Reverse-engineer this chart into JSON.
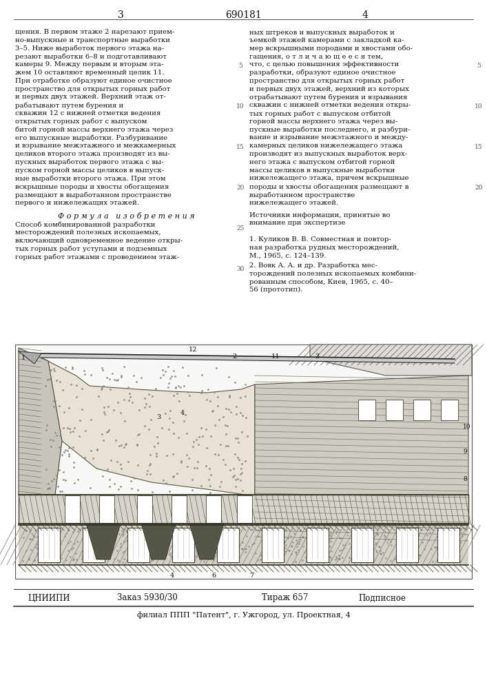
{
  "patent_number": "690181",
  "page_left": "3",
  "page_right": "4",
  "col_left_text": [
    "щения. В первом этаже 2 нарезают прием-",
    "но-выпускные и транспортные выработки",
    "3–5. Ниже выработок первого этажа на-",
    "резают выработки 6–8 и подготавливают",
    "камеры 9. Между первым и вторым эта-",
    "жем 10 оставляют временный целик 11.",
    "При отработке образуют единое очистное",
    "пространство для открытых горных работ",
    "и первых двух этажей. Верхний этаж от-",
    "рабатывают путем бурения и",
    "скважин 12 с нижней отметки ведения",
    "открытых горных работ с выпуском",
    "битой горной массы верхнего этажа через",
    "его выпускные выработки. Разбуривание",
    "и взрывание межэтажного и межкамерных",
    "целиков второго этажа производят из вы-",
    "пускных выработок первого этажа с вы-",
    "пуском горной массы целиков в выпуск-",
    "ные выработки второго этажа. При этом",
    "вскрышные породы и хвосты обогащения",
    "размещают в выработанном пространстве",
    "первого и нижележащих этажей."
  ],
  "col_right_text": [
    "ных штреков и выпускных выработок и",
    "ъемкой этажей камерами с закладкой ка-",
    "мер вскрышными породами и хвостами обо-",
    "гащения, о т л и ч а ю щ е е с я тем,",
    "что, с целью повышения эффективности",
    "разработки, образуют единое очистное",
    "пространство для открытых горных работ",
    "и первых двух этажей, верхний из которых",
    "отрабатывают путем бурения и взрывания",
    "скважин с нижней отметки ведения откры-",
    "тых горных работ с выпуском отбитой",
    "горной массы верхнего этажа через вы-",
    "пускные выработки последнего, и разбури-",
    "вание и взрывание межэтажного и между-",
    "камерных целиков нижележащего этажа",
    "производят из выпускных выработок верх-",
    "него этажа с выпуском отбитой горной",
    "массы целиков в выпускные выработки",
    "нижележащего этажа, причем вскрышные",
    "породы и хвосты обогащения размещают в",
    "выработанном пространстве",
    "нижележащего этажей."
  ],
  "formula_title": "Ф о р м у л а   и з о б р е т е н и я",
  "formula_text": [
    "Способ комбинированной разработки",
    "месторождений полезных ископаемых,",
    "включающий одновременное ведение откры-",
    "тых горных работ уступами и подземных",
    "горных работ этажами с проведением этаж-"
  ],
  "references_header": "Источники информации, принятые во",
  "references_header2": "внимание при экспертизе",
  "ref1a": "1. Куликов В. В. Совместная и повтор-",
  "ref1b": "ная разработка рудных месторождений,",
  "ref1c": "М., 1965, с. 124–139.",
  "ref2a": "2. Вовк А. А. и др. Разработка мес-",
  "ref2b": "торождений полезных ископаемых комбини-",
  "ref2c": "рованным способом, Киев, 1965, с. 40–",
  "ref2d": "56 (прототип).",
  "footer_org": "ЦНИИПИ",
  "footer_order": "Заказ 5930/30",
  "footer_print": "Тираж 657",
  "footer_sub": "Подписное",
  "footer_addr": "филиал ППП \"Патент\", г. Ужгород, ул. Проектная, 4"
}
